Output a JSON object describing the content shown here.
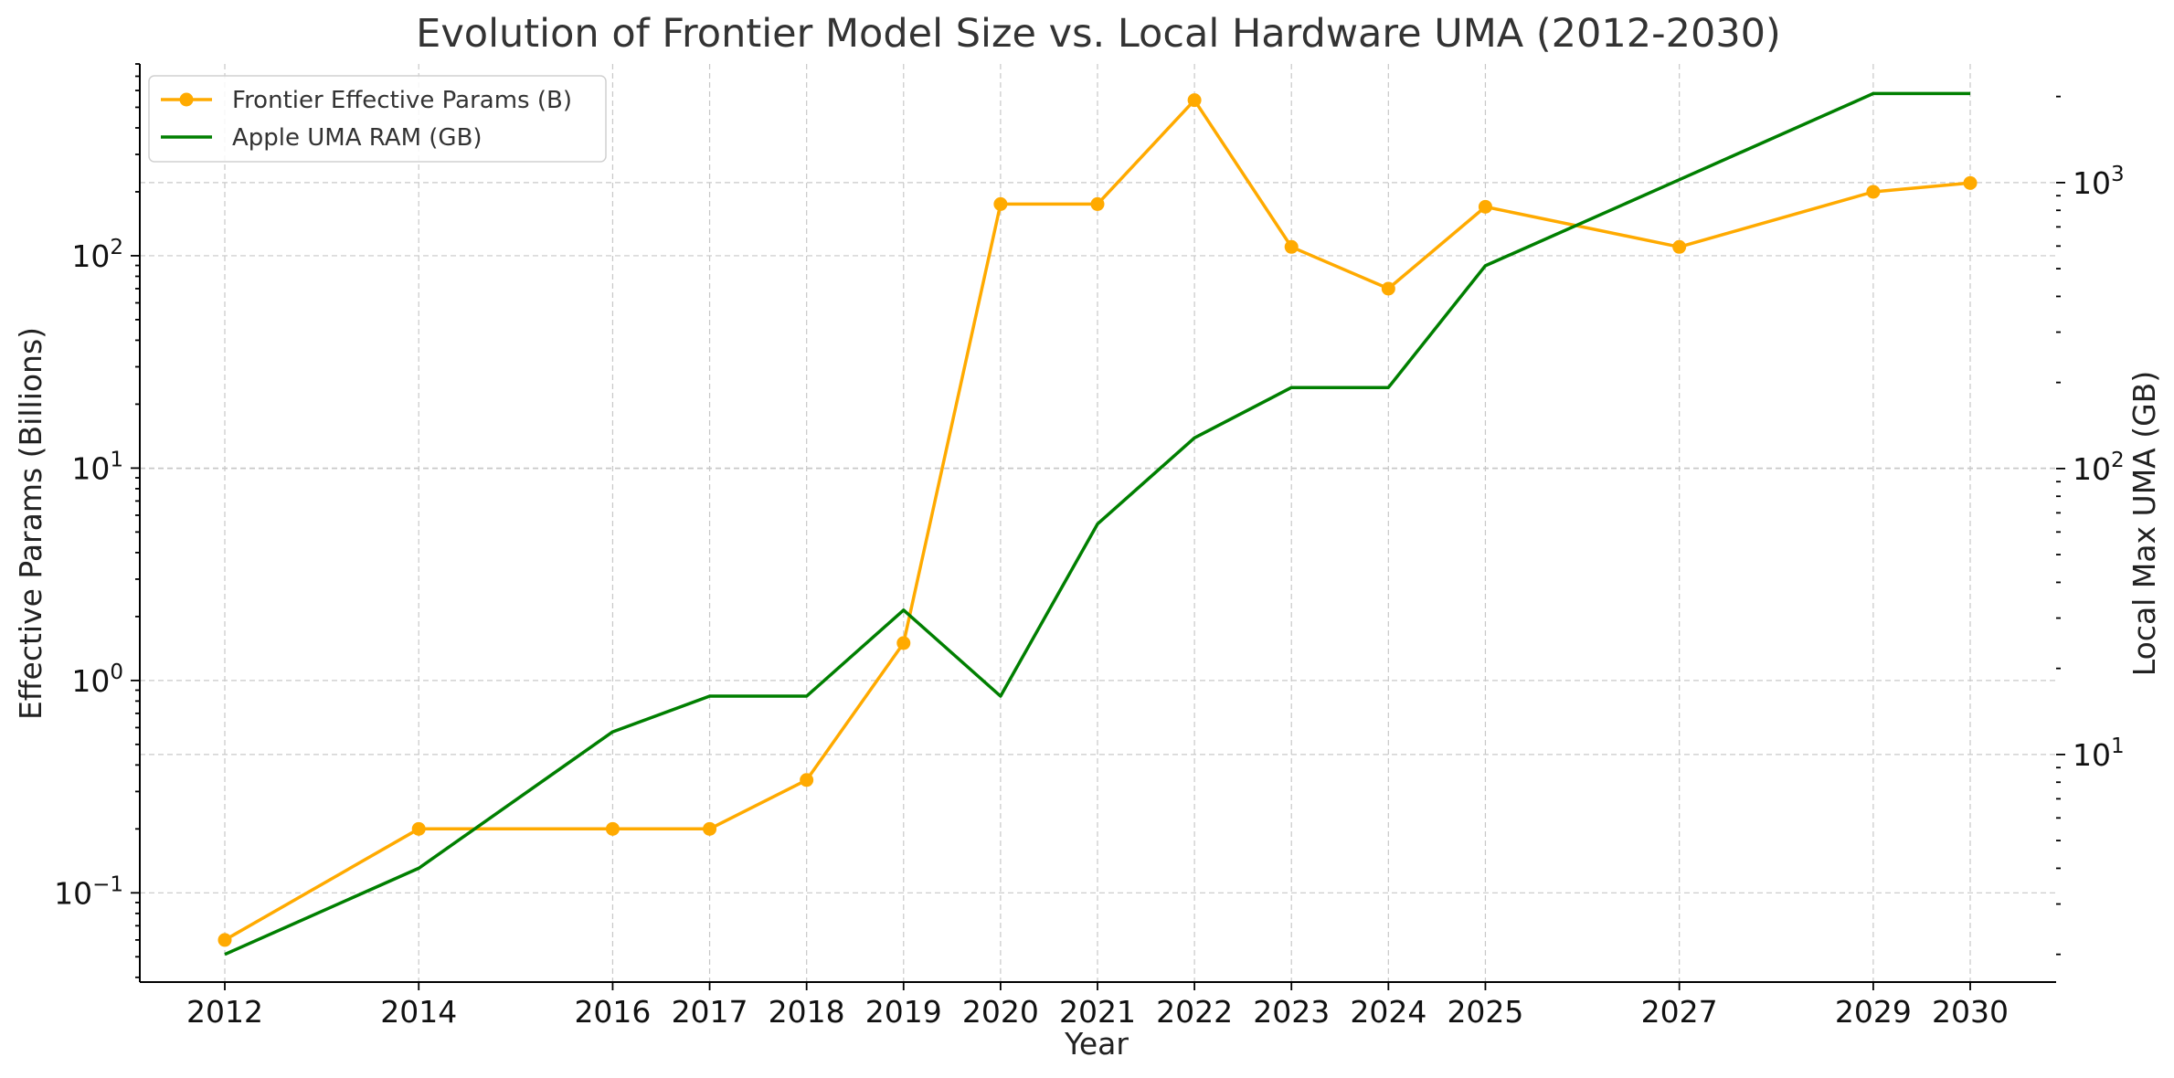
{
  "chart_data": {
    "type": "line",
    "title": "Evolution of Frontier Model Size vs. Local Hardware UMA (2012-2030)",
    "xlabel": "Year",
    "ylabel_left": "Effective Params (Billions)",
    "ylabel_right": "Local Max UMA (GB)",
    "x_ticks": [
      2012,
      2014,
      2016,
      2017,
      2018,
      2019,
      2020,
      2021,
      2022,
      2023,
      2024,
      2025,
      2027,
      2029,
      2030
    ],
    "y_left_scale": "log",
    "y_left_lim": [
      0.038,
      800
    ],
    "y_left_ticks": [
      {
        "value": 0.1,
        "base": "10",
        "exp": "−1"
      },
      {
        "value": 1,
        "base": "10",
        "exp": "0"
      },
      {
        "value": 10,
        "base": "10",
        "exp": "1"
      },
      {
        "value": 100,
        "base": "10",
        "exp": "2"
      }
    ],
    "y_right_scale": "log",
    "y_right_lim": [
      1.6,
      2600
    ],
    "y_right_ticks": [
      {
        "value": 10,
        "base": "10",
        "exp": "1"
      },
      {
        "value": 100,
        "base": "10",
        "exp": "2"
      },
      {
        "value": 1000,
        "base": "10",
        "exp": "3"
      }
    ],
    "grid": true,
    "legend_position": "top-left",
    "series": [
      {
        "name": "Frontier Effective Params (B)",
        "axis": "left",
        "color": "#FFAA00",
        "marker": "circle",
        "x": [
          2012,
          2014,
          2016,
          2017,
          2018,
          2019,
          2020,
          2021,
          2022,
          2023,
          2024,
          2025,
          2027,
          2029,
          2030
        ],
        "y": [
          0.06,
          0.2,
          0.2,
          0.2,
          0.34,
          1.5,
          175,
          175,
          540,
          110,
          70,
          170,
          110,
          200,
          220
        ]
      },
      {
        "name": "Apple UMA RAM (GB)",
        "axis": "right",
        "color": "#007F00",
        "marker": "none",
        "x": [
          2012,
          2014,
          2016,
          2017,
          2018,
          2019,
          2020,
          2021,
          2022,
          2023,
          2024,
          2025,
          2027,
          2029,
          2030
        ],
        "y": [
          2,
          4,
          12,
          16,
          16,
          32,
          16,
          64,
          128,
          192,
          192,
          512,
          1024,
          2048,
          2048
        ]
      }
    ]
  }
}
